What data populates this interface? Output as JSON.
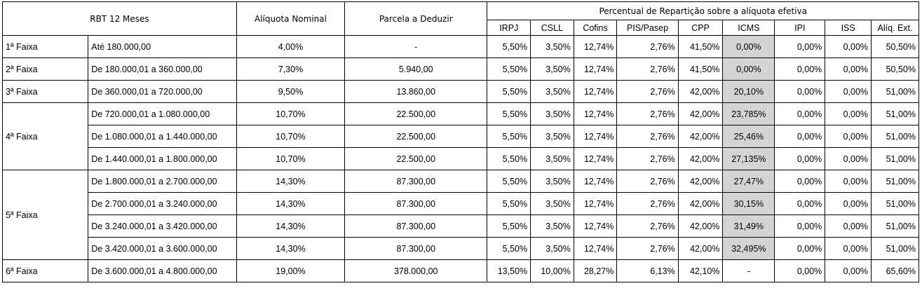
{
  "header": {
    "rbt": "RBT 12 Meses",
    "aliquota": "Alíquota Nominal",
    "parcela": "Parcela a Deduzir",
    "percentual": "Percentual de Repartição sobre a alíquota efetiva",
    "cols": [
      "IRPJ",
      "CSLL",
      "Cofins",
      "PIS/Pasep",
      "CPP",
      "ICMS",
      "IPI",
      "ISS",
      "Alíq. Ext."
    ]
  },
  "faixas": [
    {
      "label": "1ª Faixa"
    },
    {
      "label": "2ª Faixa"
    },
    {
      "label": "3ª Faixa"
    },
    {
      "label": "4ª Faixa"
    },
    {
      "label": "5ª Faixa"
    },
    {
      "label": "6ª Faixa"
    }
  ],
  "rows": [
    {
      "range": "Até 180.000,00",
      "aliq": "4,00%",
      "parcela": "-",
      "vals": [
        "5,50%",
        "3,50%",
        "12,74%",
        "2,76%",
        "41,50%",
        "0,00%",
        "0,00%",
        "0,00%",
        "50,50%"
      ]
    },
    {
      "range": "De 180.000,01 a 360.000,00",
      "aliq": "7,30%",
      "parcela": "5.940,00",
      "vals": [
        "5,50%",
        "3,50%",
        "12,74%",
        "2,76%",
        "41,50%",
        "0,00%",
        "0,00%",
        "0,00%",
        "50,50%"
      ]
    },
    {
      "range": "De 360.000,01 a 720.000,00",
      "aliq": "9,50%",
      "parcela": "13.860,00",
      "vals": [
        "5,50%",
        "3,50%",
        "12,74%",
        "2,76%",
        "42,00%",
        "20,10%",
        "0,00%",
        "0,00%",
        "51,00%"
      ]
    },
    {
      "range": "De 720.000,01 a 1.080.000,00",
      "aliq": "10,70%",
      "parcela": "22.500,00",
      "vals": [
        "5,50%",
        "3,50%",
        "12,74%",
        "2,76%",
        "42,00%",
        "23,785%",
        "0,00%",
        "0,00%",
        "51,00%"
      ]
    },
    {
      "range": "De 1.080.000,01 a 1.440.000,00",
      "aliq": "10,70%",
      "parcela": "22.500,00",
      "vals": [
        "5,50%",
        "3,50%",
        "12,74%",
        "2,76%",
        "42,00%",
        "25,46%",
        "0,00%",
        "0,00%",
        "51,00%"
      ]
    },
    {
      "range": "De 1.440.000,01 a 1.800.000,00",
      "aliq": "10,70%",
      "parcela": "22.500,00",
      "vals": [
        "5,50%",
        "3,50%",
        "12,74%",
        "2,76%",
        "42,00%",
        "27,135%",
        "0,00%",
        "0,00%",
        "51,00%"
      ]
    },
    {
      "range": "De 1.800.000,01 a 2.700.000,00",
      "aliq": "14,30%",
      "parcela": "87.300,00",
      "vals": [
        "5,50%",
        "3,50%",
        "12,74%",
        "2,76%",
        "42,00%",
        "27,47%",
        "0,00%",
        "0,00%",
        "51,00%"
      ]
    },
    {
      "range": "De 2.700.000,01 a 3.240.000,00",
      "aliq": "14,30%",
      "parcela": "87.300,00",
      "vals": [
        "5,50%",
        "3,50%",
        "12,74%",
        "2,76%",
        "42,00%",
        "30,15%",
        "0,00%",
        "0,00%",
        "51,00%"
      ]
    },
    {
      "range": "De 3.240.000,01 a 3.420.000,00",
      "aliq": "14,30%",
      "parcela": "87.300,00",
      "vals": [
        "5,50%",
        "3,50%",
        "12,74%",
        "2,76%",
        "42,00%",
        "31,49%",
        "0,00%",
        "0,00%",
        "51,00%"
      ]
    },
    {
      "range": "De 3.420.000,01 a 3.600.000,00",
      "aliq": "14,30%",
      "parcela": "87.300,00",
      "vals": [
        "5,50%",
        "3,50%",
        "12,74%",
        "2,76%",
        "42,00%",
        "32,495%",
        "0,00%",
        "0,00%",
        "51,00%"
      ]
    },
    {
      "range": "De 3.600.000,01 a 4.800.000,00",
      "aliq": "19,00%",
      "parcela": "378.000,00",
      "vals": [
        "13,50%",
        "10,00%",
        "28,27%",
        "6,13%",
        "42,10%",
        "-",
        "0,00%",
        "0,00%",
        "65,60%"
      ]
    }
  ],
  "colors": {
    "icms_highlight": "#d4d4d4",
    "border": "#000000"
  }
}
